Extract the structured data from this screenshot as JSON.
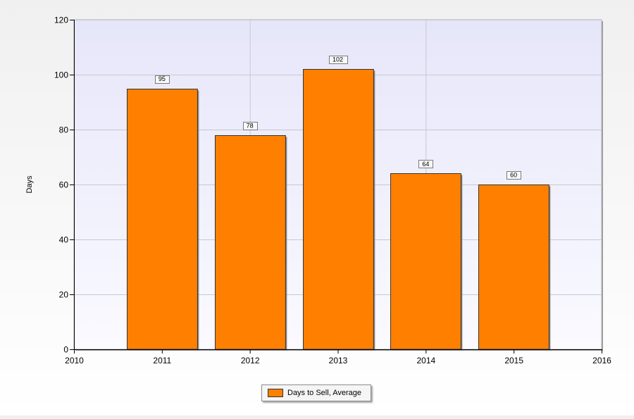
{
  "chart_data": {
    "type": "bar",
    "x": [
      2011,
      2012,
      2013,
      2014,
      2015
    ],
    "values": [
      95,
      78,
      102,
      64,
      60
    ],
    "series": [
      {
        "name": "Days to Sell, Average",
        "values": [
          95,
          78,
          102,
          64,
          60
        ]
      }
    ],
    "data_labels": [
      "95",
      "78",
      "102",
      "64",
      "60"
    ],
    "title": "",
    "xlabel": "",
    "ylabel": "Days",
    "xlim": [
      2010,
      2016
    ],
    "ylim": [
      0,
      120
    ],
    "x_ticks": [
      "2010",
      "2011",
      "2012",
      "2013",
      "2014",
      "2015",
      "2016"
    ],
    "y_ticks": [
      "0",
      "20",
      "40",
      "60",
      "80",
      "100",
      "120"
    ],
    "grid": true,
    "legend_position": "bottom-center",
    "colors": {
      "bar": "#ff8000",
      "bar_border": "#333333",
      "plot_background_top": "#e6e6fa",
      "plot_background_bottom": "#fafaff",
      "grid": "#c8c8d2"
    }
  }
}
